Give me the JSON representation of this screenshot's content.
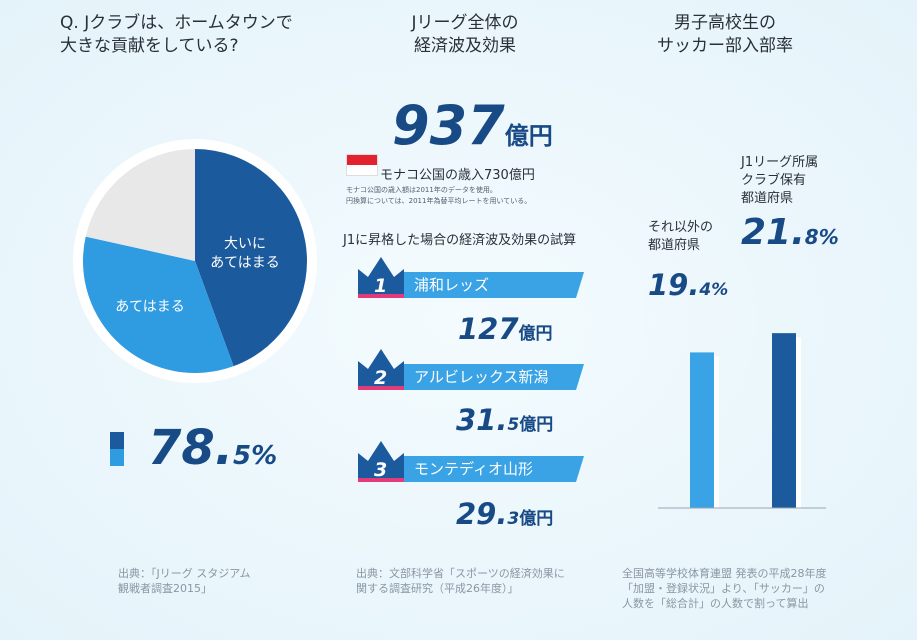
{
  "left": {
    "question": "Q. Jクラブは、ホームタウンで\n大きな貢献をしている?",
    "pie": {
      "slices": [
        {
          "label": "大いに\nあてはまる",
          "color": "#1b5a9d"
        },
        {
          "label": "あてはまる",
          "color": "#2f9be1"
        },
        {
          "label": "",
          "color": "#e8e8e8"
        }
      ]
    },
    "total_value": "78.",
    "total_decimal": "5%",
    "source": "出典：「Jリーグ スタジアム\n観戦者調査2015」"
  },
  "middle": {
    "title": "Jリーグ全体の\n経済波及効果",
    "total_value": "937",
    "total_unit": "億円",
    "monaco_label": "モナコ公国の歳入730億円",
    "note": "モナコ公国の歳入額は2011年のデータを使用。\n円換算については、2011年為替平均レートを用いている。",
    "subtitle": "J1に昇格した場合の経済波及効果の試算",
    "clubs": [
      {
        "rank": "1",
        "name": "浦和レッズ",
        "value_int": "127",
        "value_dec": "",
        "unit": "億円"
      },
      {
        "rank": "2",
        "name": "アルビレックス新潟",
        "value_int": "31.",
        "value_dec": "5",
        "unit": "億円"
      },
      {
        "rank": "3",
        "name": "モンテディオ山形",
        "value_int": "29.",
        "value_dec": "3",
        "unit": "億円"
      }
    ],
    "source": "出典：文部科学省「スポーツの経済効果に\n関する調査研究（平成26年度）」"
  },
  "right": {
    "title": "男子高校生の\nサッカー部入部率",
    "chart_data": {
      "type": "bar",
      "categories": [
        "それ以外の\n都道府県",
        "J1リーグ所属\nクラブ保有\n都道府県"
      ],
      "values": [
        19.4,
        21.8
      ],
      "value_labels": [
        {
          "int": "19.",
          "dec": "4%"
        },
        {
          "int": "21.",
          "dec": "8%"
        }
      ],
      "colors": [
        "#3aa3e6",
        "#1b5a9d"
      ],
      "ylim": [
        0,
        28
      ]
    },
    "source": "全国高等学校体育連盟 発表の平成28年度\n「加盟・登録状況」より、「サッカー」の\n人数を「総合計」の人数で割って算出"
  }
}
